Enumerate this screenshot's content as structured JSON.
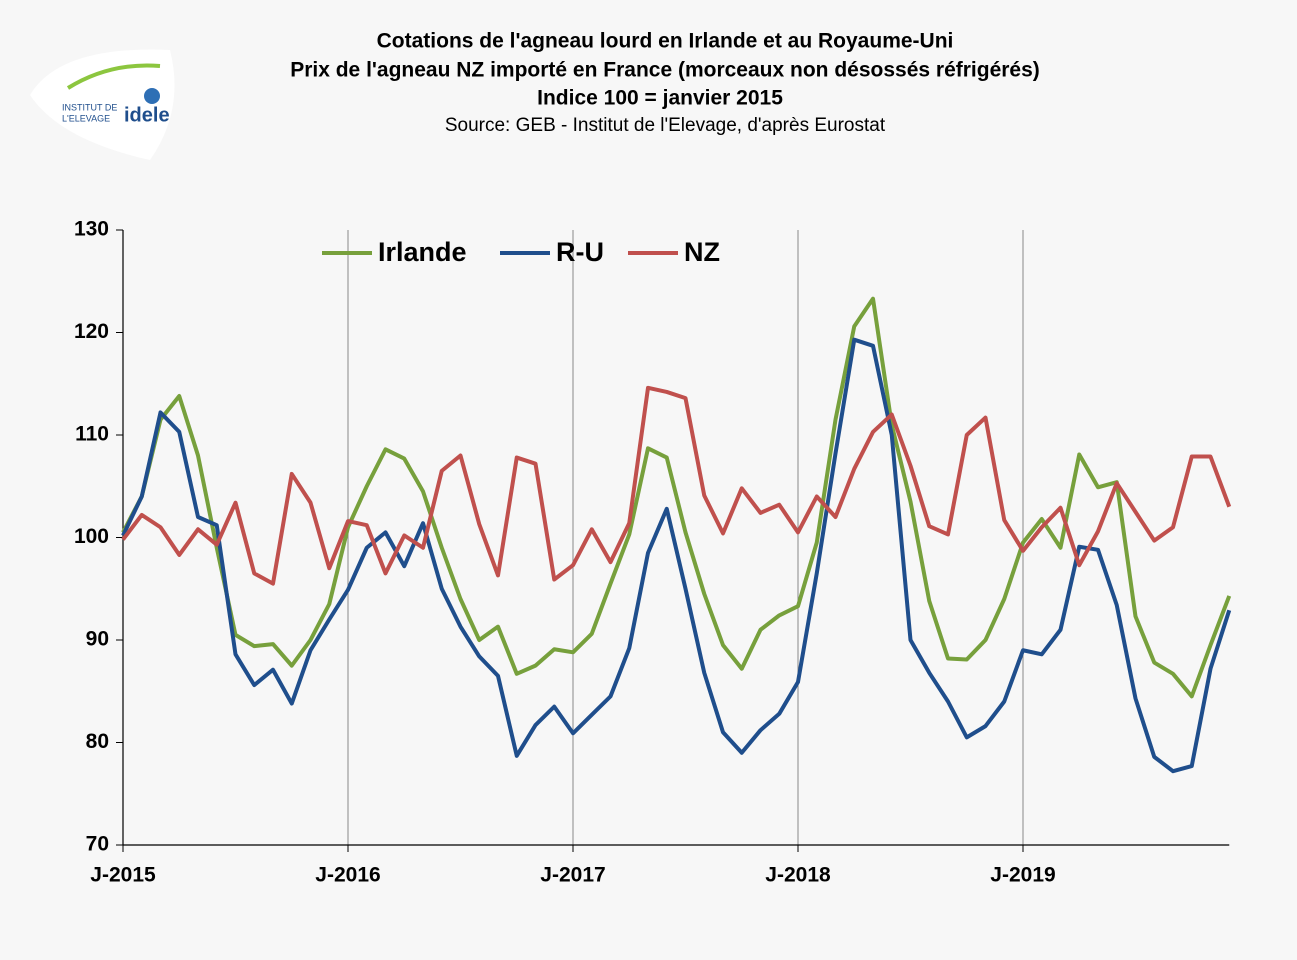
{
  "logo": {
    "line1": "INSTITUT DE",
    "line2": "L'ELEVAGE",
    "brand": "idele"
  },
  "chart_data": {
    "type": "line",
    "title": "Cotations de l'agneau lourd en Irlande et au Royaume-Uni",
    "subtitle": "Prix de l'agneau NZ importé en France (morceaux non désossés réfrigérés)",
    "subtitle2": "Indice 100 = janvier 2015",
    "source": "Source: GEB - Institut de l'Elevage, d'après Eurostat",
    "categories": [
      "J-2015",
      null,
      null,
      null,
      null,
      null,
      null,
      null,
      null,
      null,
      null,
      null,
      "J-2016",
      null,
      null,
      null,
      null,
      null,
      null,
      null,
      null,
      null,
      null,
      null,
      "J-2017",
      null,
      null,
      null,
      null,
      null,
      null,
      null,
      null,
      null,
      null,
      null,
      "J-2018",
      null,
      null,
      null,
      null,
      null,
      null,
      null,
      null,
      null,
      null,
      null,
      "J-2019",
      null,
      null,
      null,
      null,
      null,
      null,
      null,
      null,
      null,
      null,
      null
    ],
    "series": [
      {
        "name": "Irlande",
        "color": "#77a03c",
        "values": [
          100.5,
          104,
          111.5,
          113.8,
          108,
          99,
          90.5,
          89.4,
          89.6,
          87.5,
          90,
          93.5,
          101,
          105,
          108.6,
          107.7,
          104.5,
          99,
          94,
          90,
          91.3,
          86.7,
          87.5,
          89.1,
          88.8,
          90.6,
          95.5,
          100.3,
          108.7,
          107.8,
          100.5,
          94.5,
          89.5,
          87.2,
          91,
          92.4,
          93.3,
          99.5,
          111.5,
          120.6,
          123.3,
          111,
          103.5,
          93.8,
          88.2,
          88.1,
          90,
          94,
          99.5,
          101.8,
          99,
          108.1,
          104.9,
          105.4,
          92.3,
          87.8,
          86.7,
          84.5,
          89.5,
          94.3
        ]
      },
      {
        "name": "R-U",
        "color": "#1f4e8c",
        "values": [
          100.2,
          104,
          112.2,
          110.3,
          102,
          101.2,
          88.6,
          85.6,
          87.1,
          83.8,
          89,
          92,
          94.9,
          99,
          100.5,
          97.2,
          101.4,
          95,
          91.3,
          88.4,
          86.5,
          78.7,
          81.7,
          83.5,
          80.9,
          82.7,
          84.5,
          89.2,
          98.5,
          102.8,
          95,
          86.8,
          81,
          79,
          81.2,
          82.8,
          85.9,
          96.5,
          108.2,
          119.3,
          118.7,
          110,
          90,
          86.8,
          84,
          80.5,
          81.6,
          84,
          89,
          88.6,
          91,
          99.1,
          98.8,
          93.4,
          84.3,
          78.6,
          77.2,
          77.7,
          87.2,
          92.9
        ]
      },
      {
        "name": "NZ",
        "color": "#c0504d",
        "values": [
          99.8,
          102.2,
          101,
          98.3,
          100.8,
          99.3,
          103.4,
          96.5,
          95.5,
          106.2,
          103.4,
          97,
          101.6,
          101.2,
          96.5,
          100.2,
          99,
          106.5,
          108,
          101.3,
          96.3,
          107.8,
          107.2,
          95.9,
          97.3,
          100.8,
          97.6,
          101.4,
          114.6,
          114.2,
          113.6,
          104.1,
          100.4,
          104.8,
          102.4,
          103.2,
          100.5,
          104,
          102,
          106.7,
          110.3,
          112,
          107,
          101.1,
          100.3,
          110,
          111.7,
          101.7,
          98.7,
          101,
          102.9,
          97.3,
          100.6,
          105.3,
          102.5,
          99.7,
          101,
          107.9,
          107.9,
          103
        ]
      }
    ],
    "ylim": [
      70,
      130
    ],
    "yticks": [
      70,
      80,
      90,
      100,
      110,
      120,
      130
    ],
    "xgrid": true,
    "legend": "top"
  }
}
